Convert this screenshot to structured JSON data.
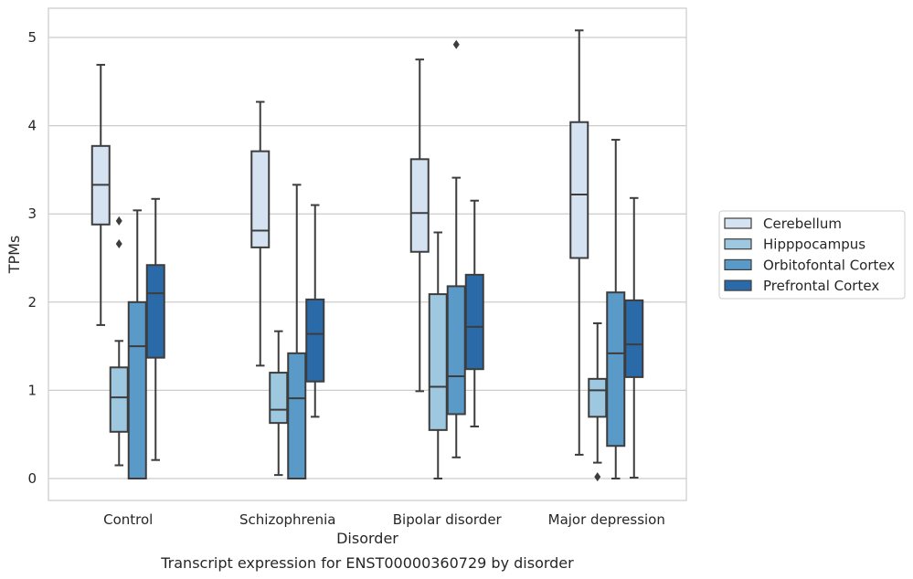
{
  "chart_data": {
    "type": "box",
    "title": "",
    "caption": "Transcript expression for ENST00000360729 by disorder",
    "xlabel": "Disorder",
    "ylabel": "TPMs",
    "ylim": [
      -0.25,
      5.35
    ],
    "yticks": [
      0,
      1,
      2,
      3,
      4,
      5
    ],
    "grid": "horizontal",
    "legend_position": "right",
    "categories": [
      "Control",
      "Schizophrenia",
      "Bipolar disorder",
      "Major depression"
    ],
    "series": [
      {
        "name": "Cerebellum",
        "color": "#d4e2f2",
        "boxes": [
          {
            "whisker_low": 1.74,
            "q1": 2.88,
            "median": 3.33,
            "q3": 3.77,
            "whisker_high": 4.69,
            "outliers": []
          },
          {
            "whisker_low": 1.28,
            "q1": 2.62,
            "median": 2.81,
            "q3": 3.71,
            "whisker_high": 4.27,
            "outliers": []
          },
          {
            "whisker_low": 0.99,
            "q1": 2.57,
            "median": 3.01,
            "q3": 3.62,
            "whisker_high": 4.75,
            "outliers": []
          },
          {
            "whisker_low": 0.27,
            "q1": 2.5,
            "median": 3.22,
            "q3": 4.04,
            "whisker_high": 5.08,
            "outliers": []
          }
        ]
      },
      {
        "name": "Hipppocampus",
        "color": "#9dc8e0",
        "boxes": [
          {
            "whisker_low": 0.15,
            "q1": 0.53,
            "median": 0.92,
            "q3": 1.26,
            "whisker_high": 1.56,
            "outliers": [
              2.66,
              2.92
            ]
          },
          {
            "whisker_low": 0.04,
            "q1": 0.63,
            "median": 0.78,
            "q3": 1.2,
            "whisker_high": 1.67,
            "outliers": []
          },
          {
            "whisker_low": 0.0,
            "q1": 0.55,
            "median": 1.04,
            "q3": 2.09,
            "whisker_high": 2.79,
            "outliers": []
          },
          {
            "whisker_low": 0.18,
            "q1": 0.7,
            "median": 1.0,
            "q3": 1.13,
            "whisker_high": 1.76,
            "outliers": [
              0.02
            ]
          }
        ]
      },
      {
        "name": "Orbitofontal Cortex",
        "color": "#5a9ac8",
        "boxes": [
          {
            "whisker_low": 0.0,
            "q1": 0.0,
            "median": 1.5,
            "q3": 2.0,
            "whisker_high": 3.04,
            "outliers": []
          },
          {
            "whisker_low": 0.0,
            "q1": 0.0,
            "median": 0.91,
            "q3": 1.42,
            "whisker_high": 3.33,
            "outliers": []
          },
          {
            "whisker_low": 0.24,
            "q1": 0.73,
            "median": 1.16,
            "q3": 2.18,
            "whisker_high": 3.41,
            "outliers": [
              4.92
            ]
          },
          {
            "whisker_low": 0.0,
            "q1": 0.37,
            "median": 1.42,
            "q3": 2.11,
            "whisker_high": 3.84,
            "outliers": []
          }
        ]
      },
      {
        "name": "Prefrontal Cortex",
        "color": "#2b6aa8",
        "boxes": [
          {
            "whisker_low": 0.21,
            "q1": 1.37,
            "median": 2.1,
            "q3": 2.42,
            "whisker_high": 3.17,
            "outliers": []
          },
          {
            "whisker_low": 0.7,
            "q1": 1.1,
            "median": 1.64,
            "q3": 2.03,
            "whisker_high": 3.1,
            "outliers": []
          },
          {
            "whisker_low": 0.59,
            "q1": 1.24,
            "median": 1.72,
            "q3": 2.31,
            "whisker_high": 3.15,
            "outliers": []
          },
          {
            "whisker_low": 0.01,
            "q1": 1.15,
            "median": 1.52,
            "q3": 2.02,
            "whisker_high": 3.18,
            "outliers": []
          }
        ]
      }
    ]
  }
}
